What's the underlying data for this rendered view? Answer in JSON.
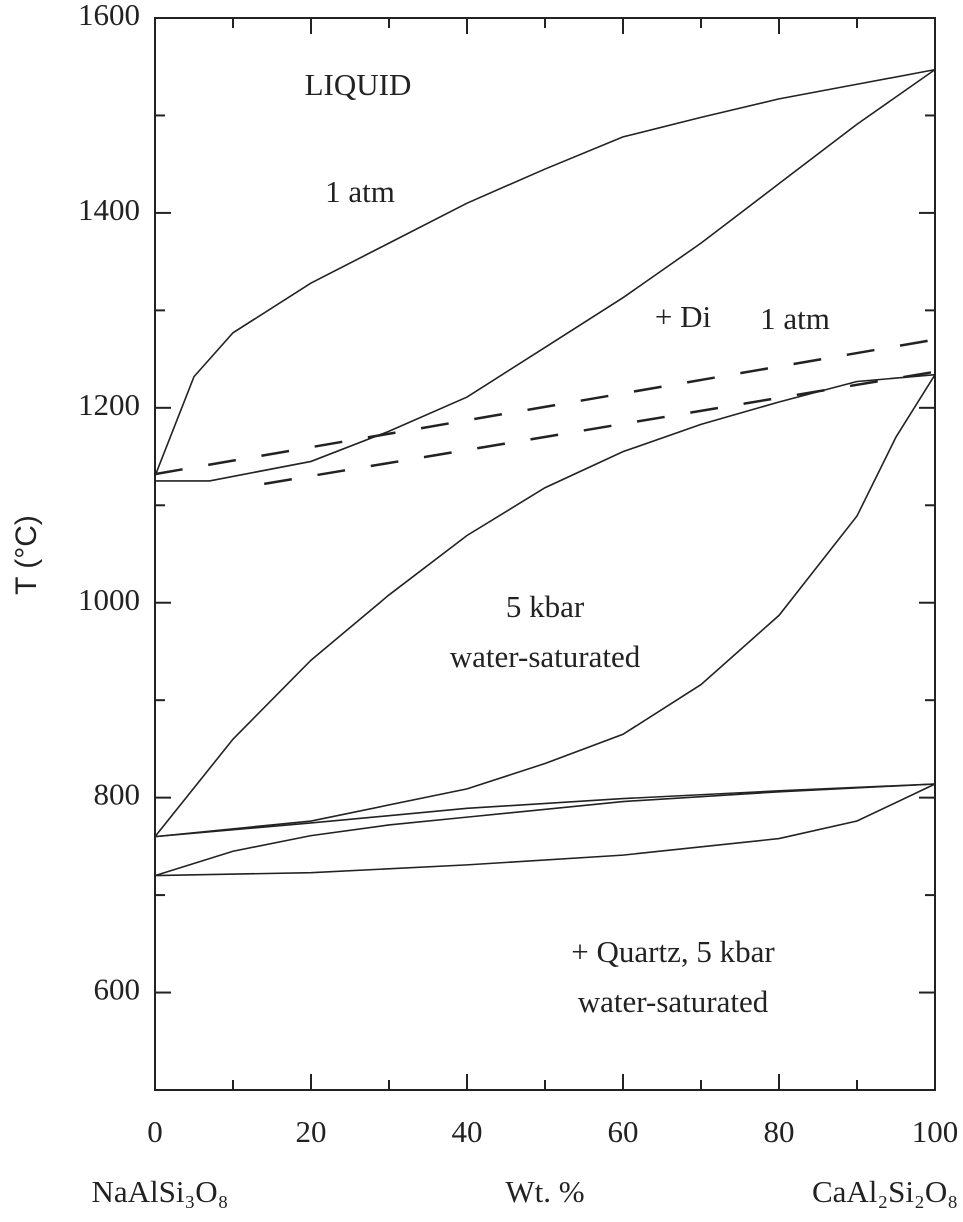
{
  "chart_data": {
    "type": "line",
    "ylabel": "T (°C)",
    "xlabel": "Wt. %",
    "x_end_labels": [
      "NaAlSi₃O₈",
      "CaAl₂Si₂O₈"
    ],
    "annotations": [
      "LIQUID",
      "1 atm",
      "+ Di",
      "1 atm",
      "5 kbar",
      "water-saturated",
      "+ Quartz, 5 kbar",
      "water-saturated"
    ],
    "xlim": [
      0,
      100
    ],
    "xticks": [
      0,
      20,
      40,
      60,
      80,
      100
    ],
    "xminor": [
      10,
      30,
      50,
      70,
      90
    ],
    "ylim": [
      500,
      1600
    ],
    "yticks": [
      600,
      800,
      1000,
      1200,
      1400,
      1600
    ],
    "yminor": [
      700,
      900,
      1100,
      1300,
      1500
    ],
    "color": "#222222",
    "series": [
      {
        "x": [
          0,
          5,
          10,
          20,
          30,
          40,
          50,
          60,
          70,
          80,
          90,
          100
        ],
        "values": [
          1130,
          1232,
          1277,
          1328,
          1369,
          1410,
          1445,
          1478,
          1498,
          1517,
          1532,
          1547
        ]
      },
      {
        "x": [
          0,
          7,
          20,
          30,
          40,
          50,
          60,
          70,
          80,
          90,
          100
        ],
        "values": [
          1125,
          1125,
          1145,
          1176,
          1211,
          1262,
          1313,
          1369,
          1430,
          1491,
          1547
        ]
      },
      {
        "x": [
          0,
          100
        ],
        "values": [
          1132,
          1270
        ],
        "dashed": true
      },
      {
        "x": [
          14,
          100
        ],
        "values": [
          1122,
          1237
        ],
        "dashed": true
      },
      {
        "x": [
          0,
          10,
          20,
          30,
          40,
          50,
          60,
          70,
          80,
          90,
          100
        ],
        "values": [
          760,
          860,
          941,
          1008,
          1069,
          1118,
          1155,
          1183,
          1206,
          1227,
          1234
        ]
      },
      {
        "x": [
          0,
          20,
          40,
          50,
          60,
          70,
          80,
          90,
          95,
          100
        ],
        "values": [
          760,
          776,
          809,
          835,
          865,
          916,
          987,
          1089,
          1170,
          1234
        ]
      },
      {
        "x": [
          0,
          20,
          40,
          60,
          80,
          100
        ],
        "values": [
          760,
          774,
          789,
          799,
          807,
          814
        ]
      },
      {
        "x": [
          0,
          10,
          20,
          30,
          40,
          60,
          80,
          100
        ],
        "values": [
          720,
          745,
          761,
          772,
          780,
          796,
          806,
          814
        ]
      },
      {
        "x": [
          0,
          20,
          40,
          60,
          80,
          90,
          100
        ],
        "values": [
          720,
          723,
          731,
          741,
          758,
          776,
          814
        ]
      }
    ]
  }
}
